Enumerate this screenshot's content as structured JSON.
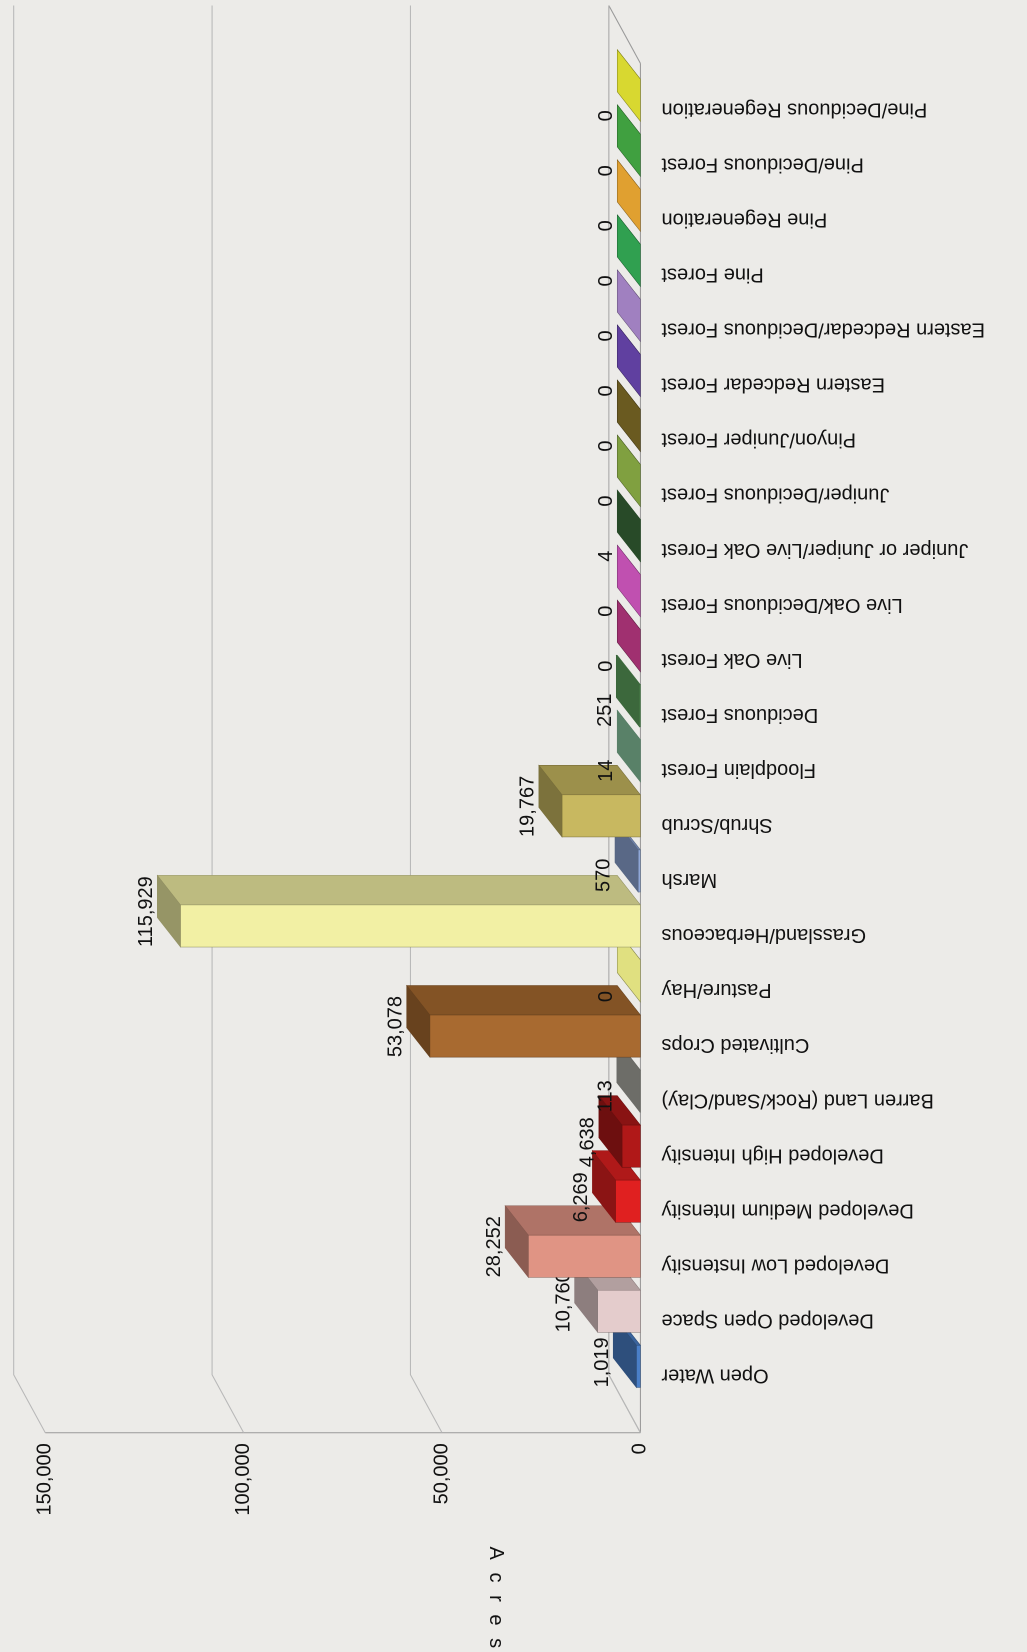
{
  "chart_data": {
    "type": "bar3d-rotated",
    "y_label": "Acres",
    "categories": [
      "Open Water",
      "Developed Open Space",
      "Developed Low Instensity",
      "Developed Medium Intensity",
      "Developed High Intensity",
      "Barren Land (Rock/Sand/Clay)",
      "Cultivated Crops",
      "Pasture/Hay",
      "Grassland/Herbaceous",
      "Marsh",
      "Shrub/Scrub",
      "Floodplain Forest",
      "Deciduous Forest",
      "Live Oak Forest",
      "Live Oak/Deciduous Forest",
      "Juniper or Juniper/Live Oak Forest",
      "Juniper/Deciduous Forest",
      "Pinyon/Juniper Forest",
      "Eastern Redcedar Forest",
      "Eastern Redcedar/Deciduous Forest",
      "Pine Forest",
      "Pine Regeneration",
      "Pine/Deciduous Forest",
      "Pine/Deciduous Regeneration"
    ],
    "values": [
      1019,
      10760,
      28252,
      6269,
      4638,
      113,
      53078,
      0,
      115929,
      570,
      19767,
      14,
      251,
      0,
      0,
      4,
      0,
      0,
      0,
      0,
      0,
      0,
      0,
      0
    ],
    "value_labels": [
      "1,019",
      "10,760",
      "28,252",
      "6,269",
      "4,638",
      "113",
      "53,078",
      "0",
      "115,929",
      "570",
      "19,767",
      "14",
      "251",
      "0",
      "0",
      "4",
      "0",
      "0",
      "0",
      "0",
      "0",
      "0",
      "0",
      "0"
    ],
    "colors": [
      "#4a7fc8",
      "#e4cccc",
      "#e09484",
      "#e02020",
      "#b01818",
      "#b0b0a8",
      "#a86a30",
      "#e0e080",
      "#f2f0a4",
      "#90a8d8",
      "#c8b860",
      "#90d0a8",
      "#60a860",
      "#a03070",
      "#c050b0",
      "#407840",
      "#80a040",
      "#6a5a20",
      "#6040a0",
      "#a080c0",
      "#30a050",
      "#e0a030",
      "#40a040",
      "#d8d830"
    ],
    "ylim": [
      0,
      150000
    ],
    "yticks": [
      0,
      {
        "value": 50000,
        "label": "50,000"
      },
      {
        "value": 100000,
        "label": "100,000"
      },
      {
        "value": 150000,
        "label": "150,000"
      }
    ]
  }
}
